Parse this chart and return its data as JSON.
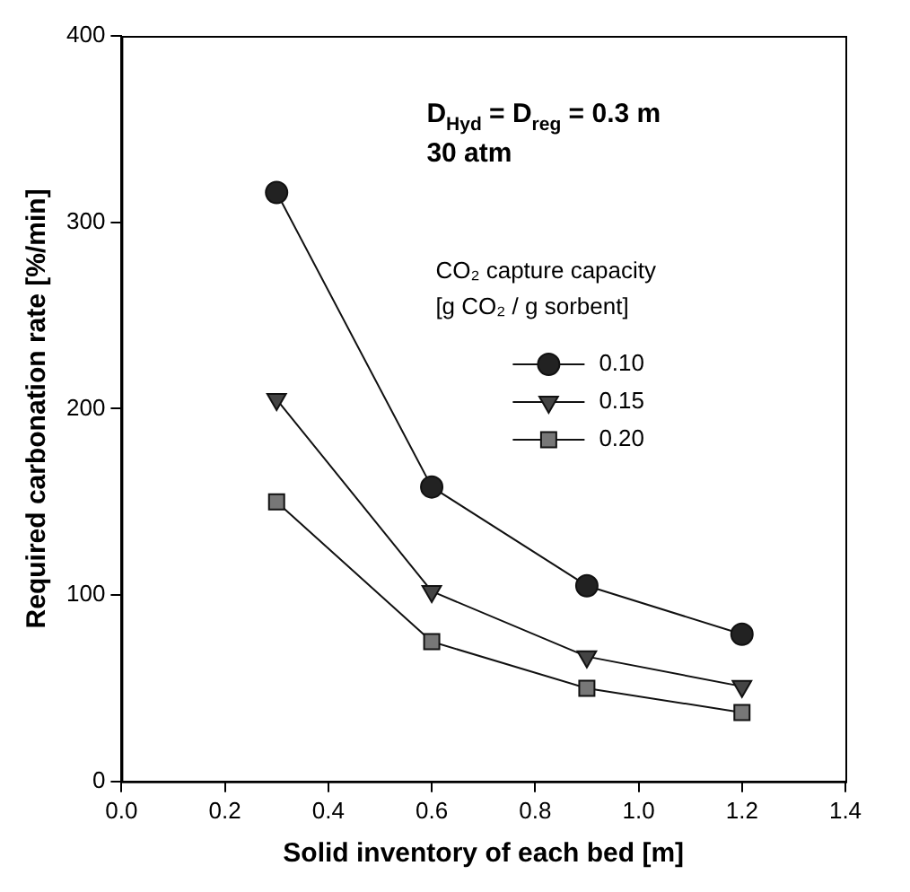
{
  "chart_data": {
    "type": "line",
    "xlabel": "Solid inventory of each bed [m]",
    "ylabel": "Required carbonation rate [%/min]",
    "legend_title": "CO₂ capture capacity\n[g CO₂ / g sorbent]",
    "annotations": [
      "D$_{Hyd}$ = D$_{reg}$ = 0.3 m",
      "30 atm"
    ],
    "x": [
      0.3,
      0.6,
      0.9,
      1.2
    ],
    "series": [
      {
        "name": "0.10",
        "color": "#222222",
        "marker": "circle",
        "values": [
          316,
          158,
          105,
          79
        ]
      },
      {
        "name": "0.15",
        "color": "#444444",
        "marker": "triangle",
        "values": [
          205,
          102,
          67,
          51
        ]
      },
      {
        "name": "0.20",
        "color": "#777777",
        "marker": "square",
        "values": [
          150,
          75,
          50,
          37
        ]
      }
    ],
    "xlim": [
      0,
      1.4
    ],
    "xticks": [
      {
        "value": 0,
        "label": "0.0"
      },
      0.2,
      0.4,
      0.6,
      0.8,
      {
        "value": 1,
        "label": "1.0"
      },
      1.2,
      1.4
    ],
    "ylim": [
      0,
      400
    ],
    "yticks": [
      0,
      100,
      200,
      300,
      400
    ],
    "grid": false,
    "legend": "right",
    "line_style": "solid"
  }
}
